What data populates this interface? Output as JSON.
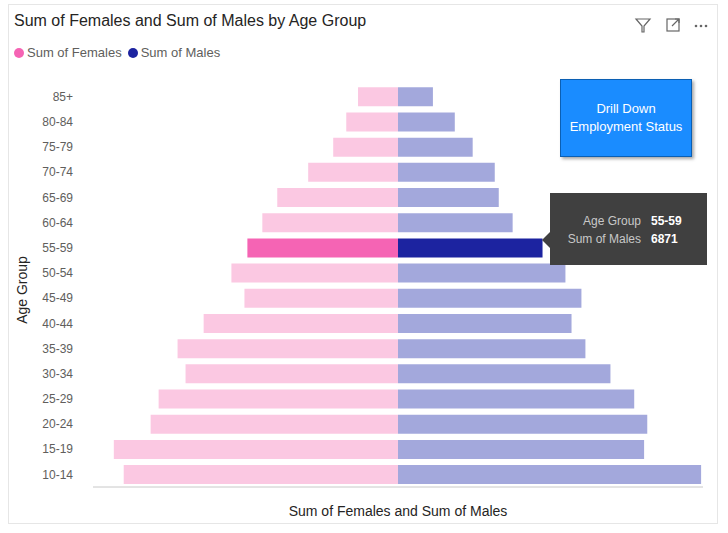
{
  "chart_data": {
    "type": "bar",
    "orientation": "horizontal",
    "title": "Sum of Females and Sum of Males by Age Group",
    "x_label": "Sum of Females and Sum of Males",
    "y_label": "Age Group",
    "categories": [
      "85+",
      "80-84",
      "75-79",
      "70-74",
      "65-69",
      "60-64",
      "55-59",
      "50-54",
      "45-49",
      "40-44",
      "35-39",
      "30-34",
      "25-29",
      "20-24",
      "15-19",
      "10-14"
    ],
    "series": [
      {
        "name": "Sum of Females",
        "color": "#f564b4",
        "colors": [
          "#fbc8e2",
          "#fbc8e2",
          "#fbc8e2",
          "#fbc8e2",
          "#fbc8e2",
          "#fbc8e2",
          "#f564b4",
          "#fbc8e2",
          "#fbc8e2",
          "#fbc8e2",
          "#fbc8e2",
          "#fbc8e2",
          "#fbc8e2",
          "#fbc8e2",
          "#fbc8e2",
          "#fbc8e2"
        ],
        "values": [
          1900,
          2460,
          3080,
          4270,
          5740,
          6450,
          7160,
          7920,
          7300,
          9240,
          10480,
          10100,
          11380,
          11760,
          13510,
          13040
        ]
      },
      {
        "name": "Sum of Males",
        "color": "#1c23a0",
        "colors": [
          "#a3a8dc",
          "#a3a8dc",
          "#a3a8dc",
          "#a3a8dc",
          "#a3a8dc",
          "#a3a8dc",
          "#1c23a0",
          "#a3a8dc",
          "#a3a8dc",
          "#a3a8dc",
          "#a3a8dc",
          "#a3a8dc",
          "#a3a8dc",
          "#a3a8dc",
          "#a3a8dc",
          "#a3a8dc"
        ],
        "values": [
          1660,
          2700,
          3550,
          4600,
          4790,
          5450,
          6871,
          7960,
          8720,
          8250,
          8910,
          10100,
          11230,
          11850,
          11700,
          14410
        ]
      }
    ],
    "xlim": [
      0,
      14500
    ],
    "tick_labels": "y",
    "legend": "top-left",
    "tooltip": {
      "rows": [
        {
          "label": "Age Group",
          "value": "55-59"
        },
        {
          "label": "Sum of Males",
          "value": 6871
        }
      ]
    },
    "annotations": [
      "Drill Down Employment Status"
    ]
  }
}
